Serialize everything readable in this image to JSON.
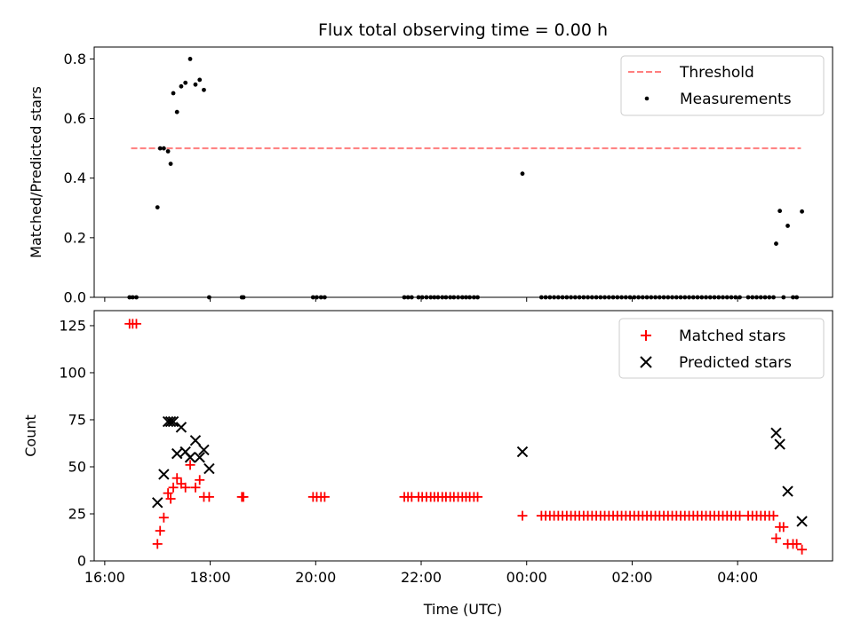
{
  "title": "Flux total observing time = 0.00 h",
  "colors": {
    "threshold": "#ff7f7f",
    "measurements": "#000000",
    "matched": "#ff0000",
    "predicted": "#000000"
  },
  "chart_data": [
    {
      "type": "scatter",
      "ylabel": "Matched/Predicted stars",
      "xlim": [
        15.8,
        29.8
      ],
      "ylim": [
        0,
        0.84
      ],
      "yticks": [
        0.0,
        0.2,
        0.4,
        0.6,
        0.8
      ],
      "ytick_labels": [
        "0.0",
        "0.2",
        "0.4",
        "0.6",
        "0.8"
      ],
      "xticks": [
        16,
        18,
        20,
        22,
        24,
        26,
        28
      ],
      "legend": {
        "placement": "top-right"
      },
      "series": [
        {
          "name": "Threshold",
          "kind": "dashed-line",
          "x": [
            16.5,
            29.2
          ],
          "y": [
            0.5,
            0.5
          ]
        },
        {
          "name": "Measurements",
          "kind": "dot",
          "x": [
            16.47,
            16.53,
            16.6,
            17.0,
            17.05,
            17.12,
            17.2,
            17.25,
            17.3,
            17.37,
            17.45,
            17.53,
            17.62,
            17.72,
            17.8,
            17.88,
            17.98,
            18.6,
            18.63,
            19.95,
            20.02,
            20.1,
            20.17,
            21.68,
            21.75,
            21.82,
            21.95,
            22.02,
            22.1,
            22.18,
            22.25,
            22.32,
            22.4,
            22.47,
            22.55,
            22.62,
            22.7,
            22.78,
            22.85,
            22.92,
            23.0,
            23.07,
            23.92,
            24.28,
            24.36,
            24.44,
            24.52,
            24.6,
            24.68,
            24.76,
            24.84,
            24.92,
            25.0,
            25.08,
            25.16,
            25.24,
            25.32,
            25.4,
            25.48,
            25.56,
            25.64,
            25.72,
            25.8,
            25.88,
            25.96,
            26.04,
            26.12,
            26.2,
            26.28,
            26.36,
            26.44,
            26.52,
            26.6,
            26.68,
            26.76,
            26.84,
            26.92,
            27.0,
            27.08,
            27.16,
            27.24,
            27.32,
            27.4,
            27.48,
            27.56,
            27.64,
            27.72,
            27.8,
            27.88,
            27.96,
            28.04,
            28.2,
            28.28,
            28.36,
            28.44,
            28.52,
            28.6,
            28.68,
            28.73,
            28.8,
            28.87,
            28.95,
            29.05,
            29.12,
            29.22
          ],
          "y": [
            0,
            0,
            0,
            0.302,
            0.5,
            0.5,
            0.49,
            0.448,
            0.685,
            0.622,
            0.708,
            0.72,
            0.8,
            0.714,
            0.73,
            0.696,
            0,
            0,
            0,
            0,
            0,
            0,
            0,
            0,
            0,
            0,
            0,
            0,
            0,
            0,
            0,
            0,
            0,
            0,
            0,
            0,
            0,
            0,
            0,
            0,
            0,
            0,
            0.415,
            0,
            0,
            0,
            0,
            0,
            0,
            0,
            0,
            0,
            0,
            0,
            0,
            0,
            0,
            0,
            0,
            0,
            0,
            0,
            0,
            0,
            0,
            0,
            0,
            0,
            0,
            0,
            0,
            0,
            0,
            0,
            0,
            0,
            0,
            0,
            0,
            0,
            0,
            0,
            0,
            0,
            0,
            0,
            0,
            0,
            0,
            0,
            0,
            0,
            0,
            0,
            0,
            0,
            0,
            0,
            0.18,
            0.29,
            0,
            0.24,
            0,
            0,
            0.288
          ]
        }
      ]
    },
    {
      "type": "scatter",
      "xlabel": "Time (UTC)",
      "ylabel": "Count",
      "xlim": [
        15.8,
        29.8
      ],
      "ylim": [
        0,
        133
      ],
      "yticks": [
        0,
        25,
        50,
        75,
        100,
        125
      ],
      "ytick_labels": [
        "0",
        "25",
        "50",
        "75",
        "100",
        "125"
      ],
      "xticks": [
        16,
        18,
        20,
        22,
        24,
        26,
        28
      ],
      "xtick_labels": [
        "16:00",
        "18:00",
        "20:00",
        "22:00",
        "00:00",
        "02:00",
        "04:00"
      ],
      "legend": {
        "placement": "top-right"
      },
      "series": [
        {
          "name": "Matched stars",
          "kind": "plus",
          "x": [
            16.47,
            16.53,
            16.6,
            17.0,
            17.05,
            17.12,
            17.2,
            17.25,
            17.3,
            17.37,
            17.45,
            17.53,
            17.62,
            17.72,
            17.8,
            17.88,
            17.98,
            18.6,
            18.63,
            19.95,
            20.02,
            20.1,
            20.17,
            21.68,
            21.75,
            21.82,
            21.95,
            22.02,
            22.1,
            22.18,
            22.25,
            22.32,
            22.4,
            22.47,
            22.55,
            22.62,
            22.7,
            22.78,
            22.85,
            22.92,
            23.0,
            23.07,
            23.92,
            24.28,
            24.36,
            24.44,
            24.52,
            24.6,
            24.68,
            24.76,
            24.84,
            24.92,
            25.0,
            25.08,
            25.16,
            25.24,
            25.32,
            25.4,
            25.48,
            25.56,
            25.64,
            25.72,
            25.8,
            25.88,
            25.96,
            26.04,
            26.12,
            26.2,
            26.28,
            26.36,
            26.44,
            26.52,
            26.6,
            26.68,
            26.76,
            26.84,
            26.92,
            27.0,
            27.08,
            27.16,
            27.24,
            27.32,
            27.4,
            27.48,
            27.56,
            27.64,
            27.72,
            27.8,
            27.88,
            27.96,
            28.04,
            28.2,
            28.28,
            28.36,
            28.44,
            28.52,
            28.6,
            28.68,
            28.73,
            28.8,
            28.87,
            28.95,
            29.05,
            29.12,
            29.22
          ],
          "y": [
            126,
            126,
            126,
            9,
            16,
            23,
            36,
            33,
            39,
            44,
            41,
            39,
            51,
            39,
            43,
            34,
            34,
            34,
            34,
            34,
            34,
            34,
            34,
            34,
            34,
            34,
            34,
            34,
            34,
            34,
            34,
            34,
            34,
            34,
            34,
            34,
            34,
            34,
            34,
            34,
            34,
            34,
            24,
            24,
            24,
            24,
            24,
            24,
            24,
            24,
            24,
            24,
            24,
            24,
            24,
            24,
            24,
            24,
            24,
            24,
            24,
            24,
            24,
            24,
            24,
            24,
            24,
            24,
            24,
            24,
            24,
            24,
            24,
            24,
            24,
            24,
            24,
            24,
            24,
            24,
            24,
            24,
            24,
            24,
            24,
            24,
            24,
            24,
            24,
            24,
            24,
            24,
            24,
            24,
            24,
            24,
            24,
            24,
            12,
            18,
            18,
            9,
            9,
            9,
            6
          ]
        },
        {
          "name": "Predicted stars",
          "kind": "x",
          "x": [
            17.0,
            17.12,
            17.2,
            17.25,
            17.3,
            17.37,
            17.45,
            17.53,
            17.62,
            17.72,
            17.8,
            17.88,
            17.98,
            23.92,
            28.73,
            28.8,
            28.95,
            29.22
          ],
          "y": [
            31,
            46,
            74,
            74,
            74,
            57,
            71,
            58,
            55,
            64,
            55,
            59,
            49,
            58,
            68,
            62,
            37,
            21
          ]
        }
      ]
    }
  ]
}
